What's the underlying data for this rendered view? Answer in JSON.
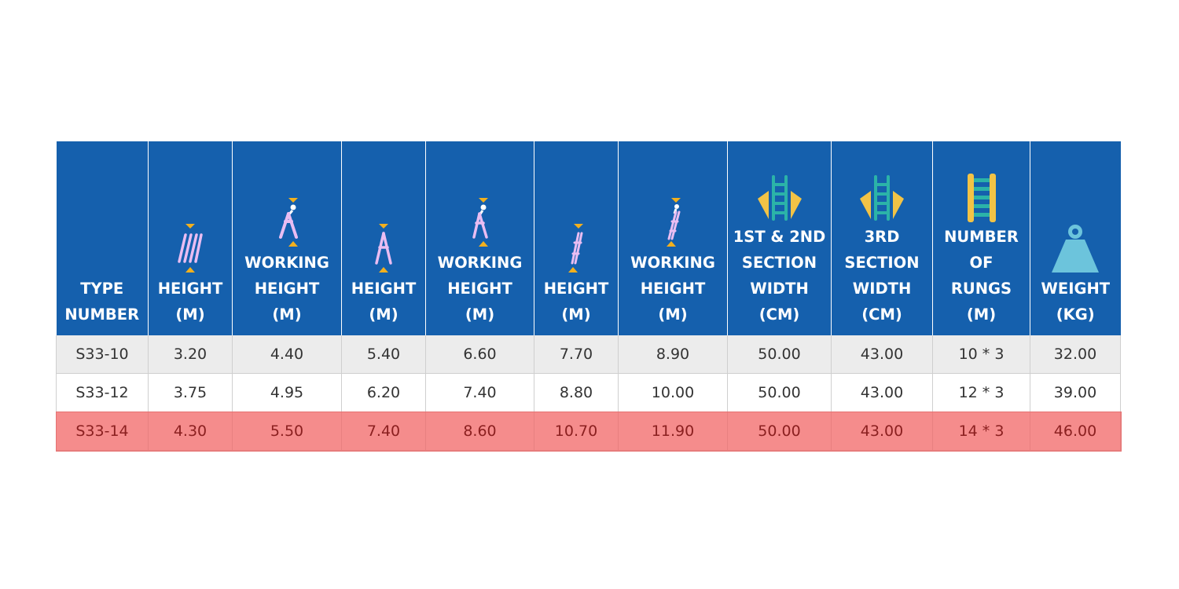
{
  "colors": {
    "header_bg": "#1560ad",
    "header_text": "#ffffff",
    "row_alt": "#ececec",
    "row_plain": "#ffffff",
    "row_highlight": "#f58c8c",
    "highlight_text": "#8b2020",
    "icon_pink": "#e9bdf2",
    "icon_marker": "#f2b01e",
    "icon_teal": "#2bb3a8",
    "icon_yellow": "#f2c346",
    "icon_weight": "#6cc4dc"
  },
  "table": {
    "headers": [
      {
        "icon": "",
        "lines": [
          "TYPE",
          "NUMBER"
        ]
      },
      {
        "icon": "ladder-straight-icon",
        "lines": [
          "HEIGHT",
          "(M)"
        ]
      },
      {
        "icon": "person-stepladder-icon",
        "lines": [
          "WORKING",
          "HEIGHT",
          "(M)"
        ]
      },
      {
        "icon": "stepladder-icon",
        "lines": [
          "HEIGHT",
          "(M)"
        ]
      },
      {
        "icon": "person-stepladder-icon",
        "lines": [
          "WORKING",
          "HEIGHT",
          "(M)"
        ]
      },
      {
        "icon": "extension-ladder-icon",
        "lines": [
          "HEIGHT",
          "(M)"
        ]
      },
      {
        "icon": "person-extension-ladder-icon",
        "lines": [
          "WORKING",
          "HEIGHT",
          "(M)"
        ]
      },
      {
        "icon": "ladder-width-icon",
        "lines": [
          "1ST & 2ND",
          "SECTION",
          "WIDTH",
          "(CM)"
        ]
      },
      {
        "icon": "ladder-width-icon",
        "lines": [
          "3RD",
          "SECTION",
          "WIDTH",
          "(CM)"
        ]
      },
      {
        "icon": "ladder-rungs-icon",
        "lines": [
          "NUMBER",
          "OF",
          "RUNGS",
          "(M)"
        ]
      },
      {
        "icon": "weight-icon",
        "lines": [
          "WEIGHT",
          "(KG)"
        ]
      }
    ],
    "rows": [
      [
        "S33-10",
        "3.20",
        "4.40",
        "5.40",
        "6.60",
        "7.70",
        "8.90",
        "50.00",
        "43.00",
        "10 * 3",
        "32.00"
      ],
      [
        "S33-12",
        "3.75",
        "4.95",
        "6.20",
        "7.40",
        "8.80",
        "10.00",
        "50.00",
        "43.00",
        "12 * 3",
        "39.00"
      ],
      [
        "S33-14",
        "4.30",
        "5.50",
        "7.40",
        "8.60",
        "10.70",
        "11.90",
        "50.00",
        "43.00",
        "14 * 3",
        "46.00"
      ]
    ]
  }
}
